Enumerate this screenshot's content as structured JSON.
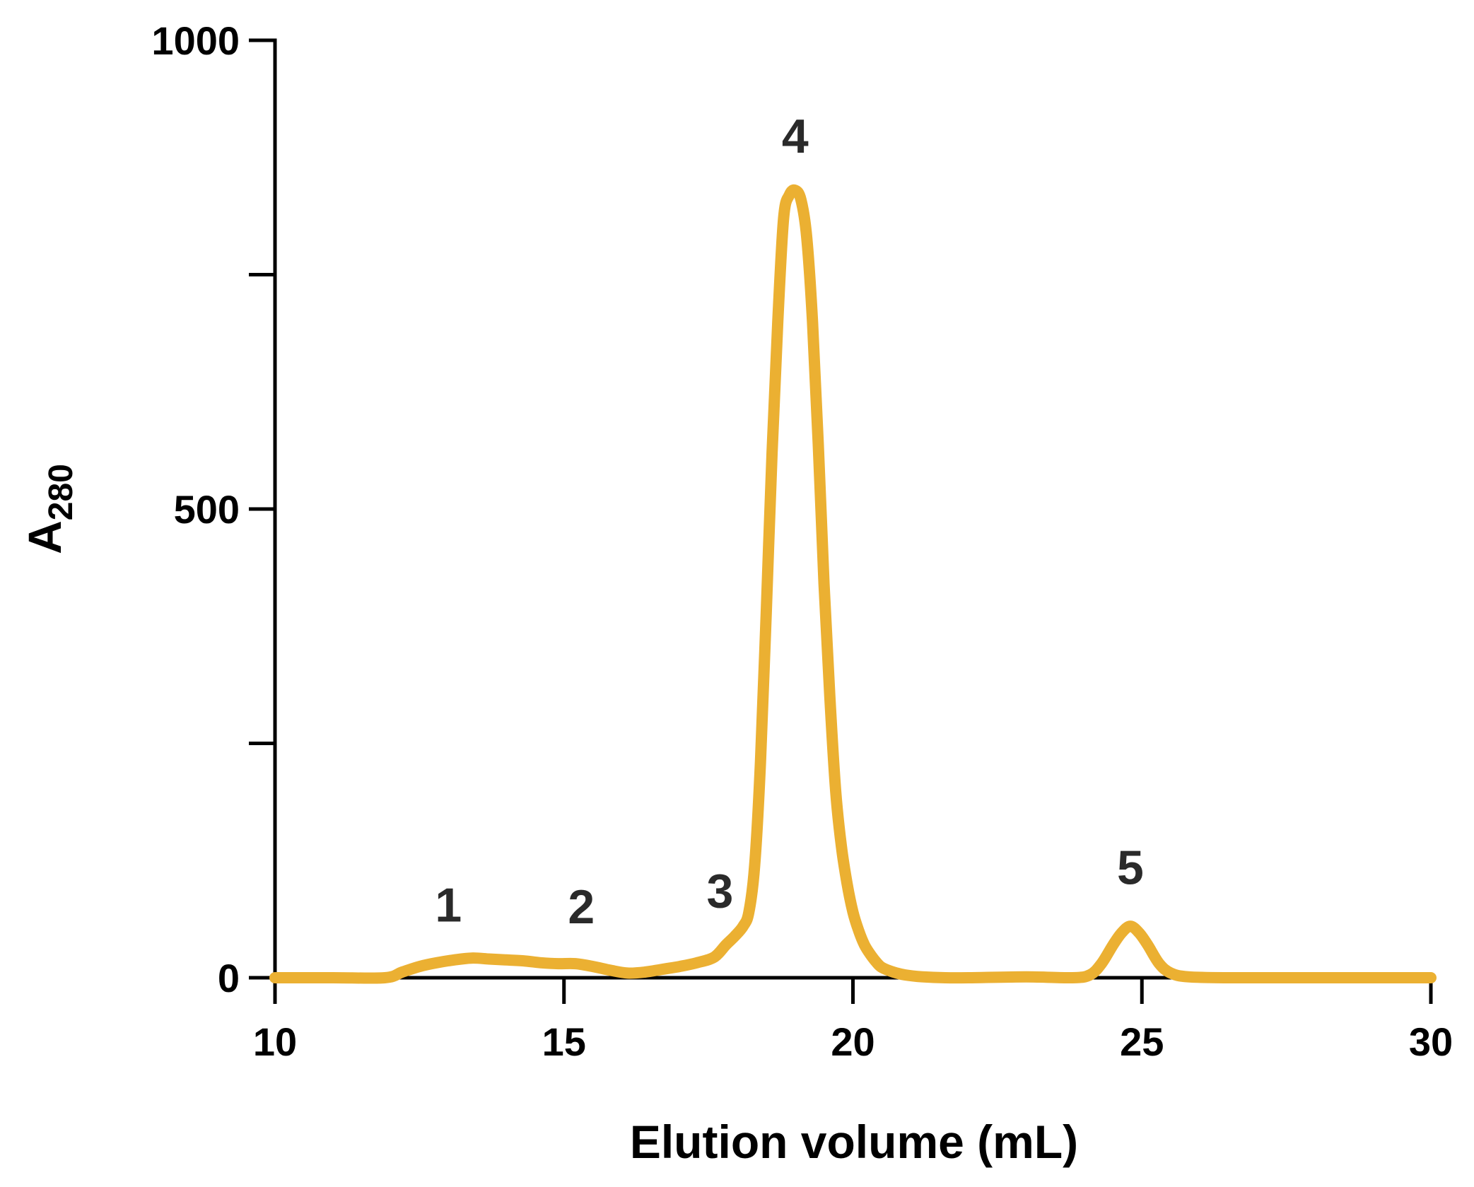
{
  "chart_data": {
    "type": "line",
    "title": "",
    "xlabel": "Elution volume (mL)",
    "ylabel_main": "A",
    "ylabel_sub": "280",
    "xlim": [
      10,
      30
    ],
    "ylim": [
      0,
      1000
    ],
    "x_ticks": [
      10,
      15,
      20,
      25,
      30
    ],
    "x_tick_labels": [
      "10",
      "15",
      "20",
      "25",
      "30"
    ],
    "y_ticks": [
      0,
      250,
      500,
      750,
      1000
    ],
    "y_tick_labels": [
      "0",
      "",
      "500",
      "",
      "1000"
    ],
    "grid": false,
    "legend": "none",
    "line_color": "#EBB032",
    "series": [
      {
        "x": [
          10,
          11,
          11.9,
          12.2,
          12.5,
          12.8,
          13.1,
          13.4,
          13.7,
          14.0,
          14.3,
          14.6,
          14.9,
          15.2,
          15.5,
          15.8,
          16.1,
          16.4,
          16.7,
          17.0,
          17.3,
          17.6,
          17.8,
          17.95,
          18.1,
          18.2,
          18.3,
          18.4,
          18.5,
          18.6,
          18.7,
          18.8,
          18.9,
          19.0,
          19.1,
          19.2,
          19.3,
          19.4,
          19.5,
          19.6,
          19.7,
          19.8,
          19.9,
          20.0,
          20.1,
          20.2,
          20.3,
          20.4,
          20.5,
          20.7,
          20.9,
          21.2,
          21.6,
          22.0,
          23.0,
          23.8,
          24.1,
          24.3,
          24.5,
          24.65,
          24.8,
          24.95,
          25.1,
          25.3,
          25.5,
          25.8,
          26.5,
          28,
          30
        ],
        "y": [
          0,
          0,
          0,
          6,
          12,
          16,
          19,
          21,
          20,
          19,
          18,
          16,
          15,
          15,
          12,
          8,
          5,
          6,
          9,
          12,
          16,
          22,
          35,
          44,
          55,
          70,
          120,
          230,
          390,
          560,
          700,
          810,
          835,
          840,
          830,
          790,
          700,
          570,
          420,
          300,
          200,
          140,
          100,
          70,
          50,
          35,
          25,
          17,
          11,
          6,
          3,
          1,
          0,
          0,
          1,
          0,
          3,
          15,
          35,
          48,
          55,
          48,
          35,
          15,
          5,
          1,
          0,
          0,
          0
        ]
      }
    ],
    "annotations": [
      {
        "text": "1",
        "x": 13.0,
        "y": 60
      },
      {
        "text": "2",
        "x": 15.3,
        "y": 58
      },
      {
        "text": "3",
        "x": 17.7,
        "y": 75
      },
      {
        "text": "4",
        "x": 19.0,
        "y": 880
      },
      {
        "text": "5",
        "x": 24.8,
        "y": 100
      }
    ]
  }
}
